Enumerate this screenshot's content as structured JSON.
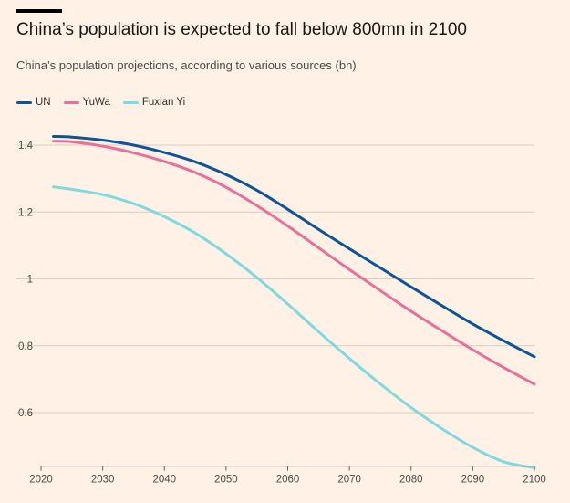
{
  "header": {
    "title": "China’s population is expected to fall below 800mn in 2100",
    "subtitle": "China’s population projections, according to various sources (bn)"
  },
  "chart_data": {
    "type": "line",
    "title": "China’s population is expected to fall below 800mn in 2100",
    "subtitle": "China’s population projections, according to various sources (bn)",
    "xlabel": "",
    "ylabel": "",
    "xlim": [
      2020,
      2100
    ],
    "ylim": [
      0.44,
      1.45
    ],
    "x_ticks": [
      2020,
      2030,
      2040,
      2050,
      2060,
      2070,
      2080,
      2090,
      2100
    ],
    "y_ticks": [
      0.6,
      0.8,
      1,
      1.2,
      1.4
    ],
    "y_tick_labels": [
      "0.6",
      "0.8",
      "1",
      "1.2",
      "1.4"
    ],
    "grid": "horizontal",
    "legend_position": "top-left",
    "x": [
      2022,
      2025,
      2030,
      2035,
      2040,
      2045,
      2050,
      2055,
      2060,
      2065,
      2070,
      2075,
      2080,
      2085,
      2090,
      2095,
      2100
    ],
    "series": [
      {
        "name": "UN",
        "color": "#0f5499",
        "values": [
          1.426,
          1.424,
          1.415,
          1.4,
          1.378,
          1.35,
          1.312,
          1.265,
          1.208,
          1.148,
          1.09,
          1.033,
          0.976,
          0.92,
          0.865,
          0.815,
          0.767
        ]
      },
      {
        "name": "YuWa",
        "color": "#e8709a",
        "values": [
          1.412,
          1.41,
          1.397,
          1.377,
          1.351,
          1.318,
          1.274,
          1.219,
          1.158,
          1.093,
          1.028,
          0.965,
          0.903,
          0.845,
          0.788,
          0.735,
          0.685
        ]
      },
      {
        "name": "Fuxian Yi",
        "color": "#7fd9df",
        "values": [
          1.275,
          1.268,
          1.252,
          1.225,
          1.186,
          1.137,
          1.075,
          1.004,
          0.925,
          0.842,
          0.762,
          0.686,
          0.615,
          0.552,
          0.496,
          0.453,
          0.435
        ]
      }
    ]
  }
}
